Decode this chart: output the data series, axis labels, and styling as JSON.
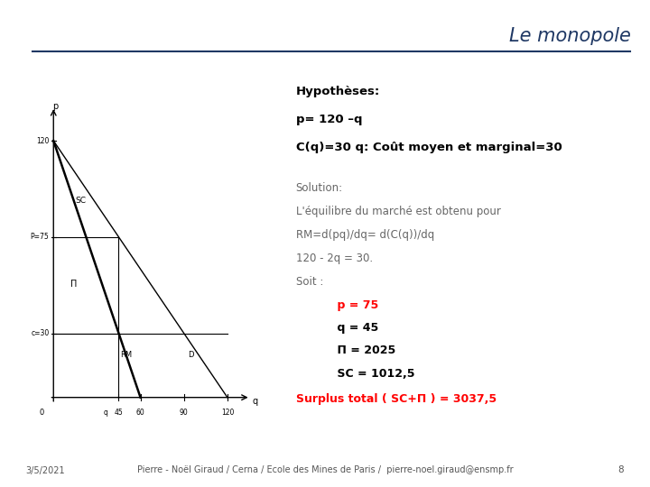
{
  "title": "Le monopole",
  "title_color": "#1F3864",
  "background_color": "#ffffff",
  "graph": {
    "q_max": 130,
    "p_max": 130,
    "cost": 30,
    "q_star": 45,
    "p_star": 75
  },
  "text_right": {
    "hypotheses_bold": "Hypothèses:",
    "hyp_line2": "p= 120 –q",
    "hyp_line3": "C(q)=30 q: Coût moyen et marginal=30",
    "solution_title": "Solution:",
    "sol_line1": "L'équilibre du marché est obtenu pour",
    "sol_line2": "RM=d(pq)/dq= d(C(q))/dq",
    "sol_line3": "120 - 2q = 30.",
    "sol_line4": "Soit :",
    "sol_p75_red": "    p = 75",
    "sol_q45": "    q = 45",
    "sol_pi": "    Π = 2025",
    "sol_sc": "    SC = 1012,5",
    "sol_surplus": "Surplus total ( SC+Π ) = 3037,5"
  },
  "footer": {
    "date": "3/5/2021",
    "author": "Pierre - Noël Giraud / Cerna / Ecole des Mines de Paris /  pierre-noel.giraud@ensmp.fr",
    "page": "8"
  },
  "label_sc": "SC",
  "label_pi": "Π",
  "label_rm": "RM",
  "label_d": "D"
}
